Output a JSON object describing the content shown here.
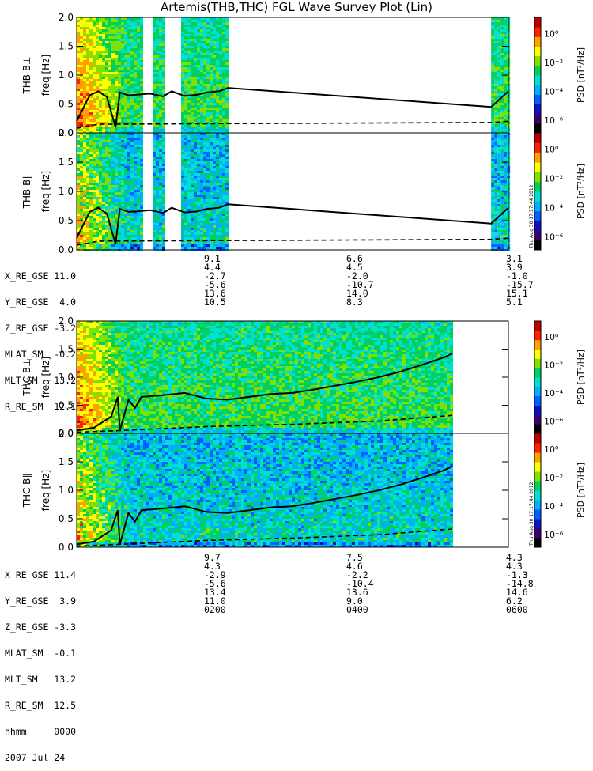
{
  "title": "Artemis(THB,THC) FGL Wave Survey Plot (Lin)",
  "colorbar": {
    "label": "PSD [nT²/Hz]",
    "ticks": [
      "10⁰",
      "10⁻²",
      "10⁻⁴",
      "10⁻⁶"
    ],
    "colors": [
      "#000000",
      "#3a0070",
      "#1010c0",
      "#0060ff",
      "#00b0ff",
      "#00e0d0",
      "#00d060",
      "#80e000",
      "#ffff00",
      "#ffa000",
      "#ff2000",
      "#c00000"
    ]
  },
  "timestamp": "Thu Aug 30 17:17:44 2012",
  "chart_data": [
    {
      "type": "heatmap",
      "panel": "THB B⊥",
      "ylabel_probe": "THB B⊥",
      "ylabel": "freq [Hz]",
      "ylim": [
        0,
        2.0
      ],
      "yticks": [
        "0.0",
        "0.5",
        "1.0",
        "1.5",
        "2.0"
      ],
      "data_ranges": [
        [
          0,
          0.35
        ],
        [
          0.96,
          1.0
        ]
      ],
      "gaps": [
        [
          0.15,
          0.17
        ],
        [
          0.2,
          0.22
        ],
        [
          0.225,
          0.24
        ]
      ],
      "lines": {
        "solid_x": [
          0,
          0.03,
          0.05,
          0.07,
          0.09,
          0.1,
          0.12,
          0.14,
          0.17,
          0.2,
          0.22,
          0.25,
          0.28,
          0.3,
          0.33,
          0.35,
          0.96,
          1.0
        ],
        "solid_y": [
          0.2,
          0.65,
          0.72,
          0.62,
          0.1,
          0.7,
          0.65,
          0.66,
          0.68,
          0.63,
          0.72,
          0.64,
          0.66,
          0.7,
          0.72,
          0.78,
          0.45,
          0.72
        ],
        "dashed_x": [
          0,
          0.05,
          0.35,
          0.96,
          1.0
        ],
        "dashed_y": [
          0.08,
          0.15,
          0.16,
          0.18,
          0.2
        ]
      }
    },
    {
      "type": "heatmap",
      "panel": "THB B∥",
      "ylabel_probe": "THB B∥",
      "ylabel": "freq [Hz]",
      "ylim": [
        0,
        2.0
      ],
      "yticks": [
        "0.0",
        "0.5",
        "1.0",
        "1.5",
        "2.0"
      ],
      "data_ranges": [
        [
          0,
          0.35
        ],
        [
          0.96,
          1.0
        ]
      ],
      "gaps": [
        [
          0.15,
          0.17
        ],
        [
          0.2,
          0.22
        ],
        [
          0.225,
          0.24
        ]
      ],
      "lines": {
        "solid_x": [
          0,
          0.03,
          0.05,
          0.07,
          0.09,
          0.1,
          0.12,
          0.14,
          0.17,
          0.2,
          0.22,
          0.25,
          0.28,
          0.3,
          0.33,
          0.35,
          0.96,
          1.0
        ],
        "solid_y": [
          0.2,
          0.65,
          0.72,
          0.62,
          0.1,
          0.7,
          0.65,
          0.66,
          0.68,
          0.63,
          0.72,
          0.64,
          0.66,
          0.7,
          0.72,
          0.78,
          0.45,
          0.72
        ],
        "dashed_x": [
          0,
          0.05,
          0.35,
          0.96,
          1.0
        ],
        "dashed_y": [
          0.08,
          0.15,
          0.16,
          0.18,
          0.2
        ]
      }
    },
    {
      "type": "heatmap",
      "panel": "THC B⊥",
      "ylabel_probe": "THC B⊥",
      "ylabel": "freq [Hz]",
      "ylim": [
        0,
        2.0
      ],
      "yticks": [
        "0.0",
        "0.5",
        "1.0",
        "1.5",
        "2.0"
      ],
      "data_ranges": [
        [
          0,
          0.87
        ]
      ],
      "gaps": [],
      "lines": {
        "solid_x": [
          0,
          0.04,
          0.06,
          0.08,
          0.095,
          0.1,
          0.12,
          0.135,
          0.15,
          0.2,
          0.25,
          0.3,
          0.35,
          0.4,
          0.45,
          0.5,
          0.55,
          0.6,
          0.65,
          0.7,
          0.75,
          0.8,
          0.85,
          0.87
        ],
        "solid_y": [
          0.05,
          0.1,
          0.2,
          0.3,
          0.65,
          0.05,
          0.6,
          0.45,
          0.65,
          0.68,
          0.72,
          0.62,
          0.6,
          0.65,
          0.7,
          0.72,
          0.78,
          0.85,
          0.92,
          1.0,
          1.1,
          1.22,
          1.35,
          1.42
        ],
        "dashed_x": [
          0,
          0.1,
          0.3,
          0.5,
          0.7,
          0.87
        ],
        "dashed_y": [
          0.02,
          0.05,
          0.12,
          0.16,
          0.22,
          0.32
        ]
      }
    },
    {
      "type": "heatmap",
      "panel": "THC B∥",
      "ylabel_probe": "THC B∥",
      "ylabel": "freq [Hz]",
      "ylim": [
        0,
        2.0
      ],
      "yticks": [
        "0.0",
        "0.5",
        "1.0",
        "1.5",
        "2.0"
      ],
      "data_ranges": [
        [
          0,
          0.87
        ]
      ],
      "gaps": [],
      "lines": {
        "solid_x": [
          0,
          0.04,
          0.06,
          0.08,
          0.095,
          0.1,
          0.12,
          0.135,
          0.15,
          0.2,
          0.25,
          0.3,
          0.35,
          0.4,
          0.45,
          0.5,
          0.55,
          0.6,
          0.65,
          0.7,
          0.75,
          0.8,
          0.85,
          0.87
        ],
        "solid_y": [
          0.05,
          0.1,
          0.2,
          0.3,
          0.65,
          0.05,
          0.6,
          0.45,
          0.65,
          0.68,
          0.72,
          0.62,
          0.6,
          0.65,
          0.7,
          0.72,
          0.78,
          0.85,
          0.92,
          1.0,
          1.1,
          1.22,
          1.35,
          1.42
        ],
        "dashed_x": [
          0,
          0.1,
          0.3,
          0.5,
          0.7,
          0.87
        ],
        "dashed_y": [
          0.02,
          0.05,
          0.12,
          0.16,
          0.22,
          0.32
        ]
      }
    }
  ],
  "thb_ephem": [
    "X_RE_GSE 11.0",
    "Y_RE_GSE  4.0",
    "Z_RE_GSE -3.2",
    "MLAT_SM  -0.2",
    "MLT_SM   13.2",
    "R_RE_SM  12.1"
  ],
  "thb_cols": [
    "9.1\n4.4\n-2.7\n-5.6\n13.6\n10.5",
    "6.6\n4.5\n-2.0\n-10.7\n14.0\n8.3",
    "3.1\n3.9\n-1.0\n-15.7\n15.1\n5.1"
  ],
  "thc_ephem": [
    "X_RE_GSE 11.4",
    "Y_RE_GSE  3.9",
    "Z_RE_GSE -3.3",
    "MLAT_SM  -0.1",
    "MLT_SM   13.2",
    "R_RE_SM  12.5",
    "hhmm     0000",
    "2007 Jul 24"
  ],
  "thc_cols": [
    "9.7\n4.3\n-2.9\n-5.6\n13.4\n11.0\n0200",
    "7.5\n4.6\n-2.2\n-10.4\n13.6\n9.0\n0400",
    "4.3\n4.3\n-1.3\n-14.8\n14.6\n6.2\n0600"
  ]
}
